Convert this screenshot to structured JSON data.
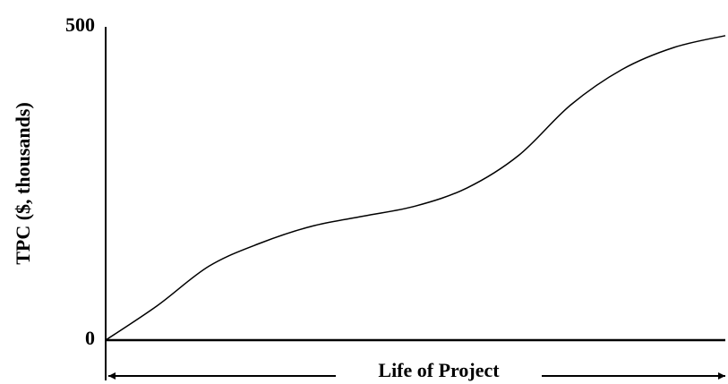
{
  "chart_data": {
    "type": "line",
    "ylabel": "TPC ($, thousands)",
    "xlabel": "Life of Project",
    "categories": [
      null,
      null,
      null,
      null,
      null,
      null,
      null,
      null,
      null,
      null,
      null,
      null,
      null
    ],
    "series": [
      {
        "color": "#000000",
        "values": [
          0,
          55,
          118,
          155,
          182,
          198,
          214,
          243,
          295,
          375,
          432,
          467,
          486
        ]
      }
    ],
    "ylim": [
      0,
      500
    ],
    "yticks": [
      0,
      500
    ],
    "grid": false
  }
}
